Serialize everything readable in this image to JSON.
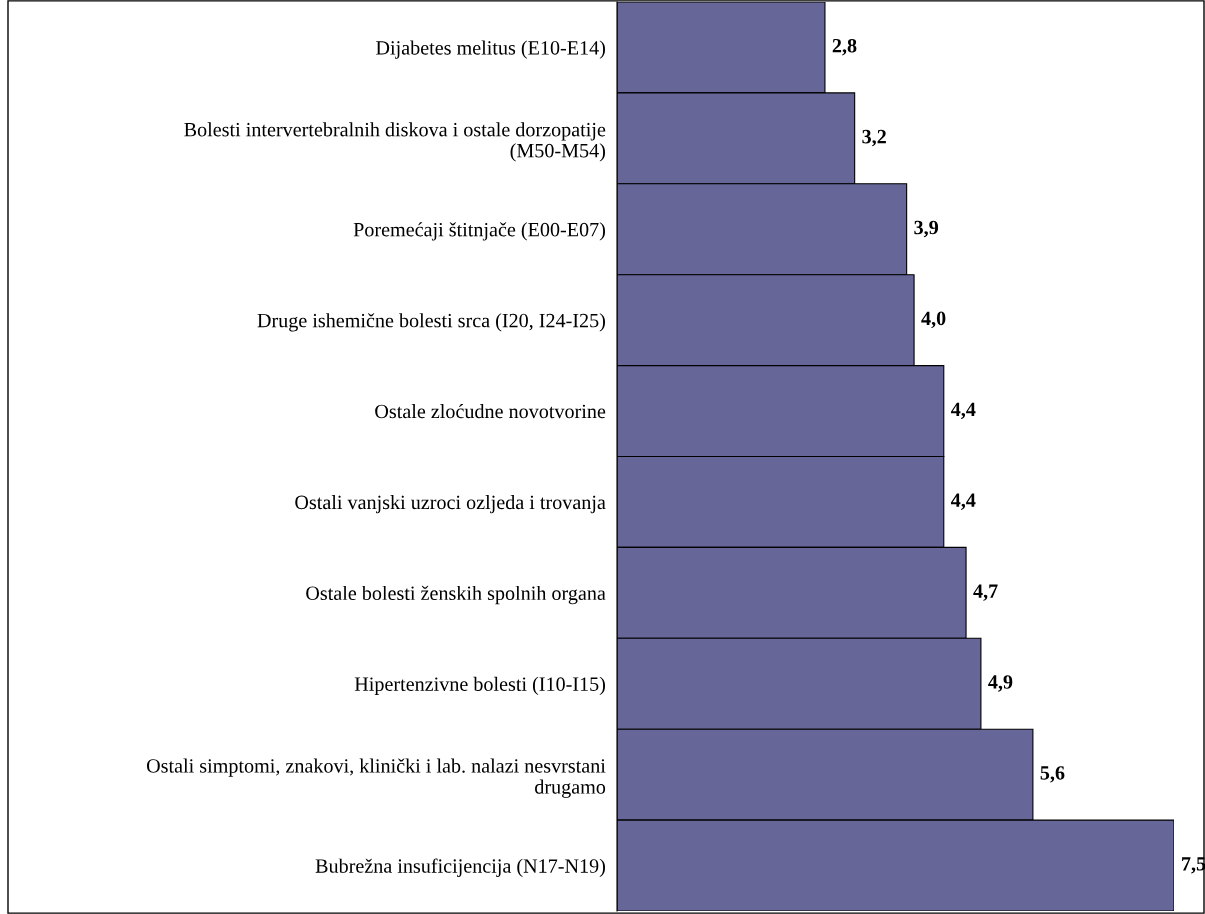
{
  "chart_data": {
    "type": "bar",
    "orientation": "horizontal",
    "categories": [
      "Dijabetes melitus (E10-E14)",
      "Bolesti intervertebralnih diskova i ostale dorzopatije\n(M50-M54)",
      "Poremećaji štitnjače (E00-E07)",
      "Druge ishemične bolesti srca (I20, I24-I25)",
      "Ostale zloćudne novotvorine",
      "Ostali vanjski uzroci ozljeda i trovanja",
      "Ostale bolesti ženskih spolnih organa",
      "Hipertenzivne bolesti (I10-I15)",
      "Ostali simptomi, znakovi, klinički i lab. nalazi nesvrstani\ndrugamo",
      "Bubrežna insuficijencija (N17-N19)"
    ],
    "values": [
      2.8,
      3.2,
      3.9,
      4.0,
      4.4,
      4.4,
      4.7,
      4.9,
      5.6,
      7.5
    ],
    "value_labels": [
      "2,8",
      "3,2",
      "3,9",
      "4,0",
      "4,4",
      "4,4",
      "4,7",
      "4,9",
      "5,6",
      "7,5"
    ],
    "color": "#666699",
    "grid": false,
    "legend": false
  }
}
